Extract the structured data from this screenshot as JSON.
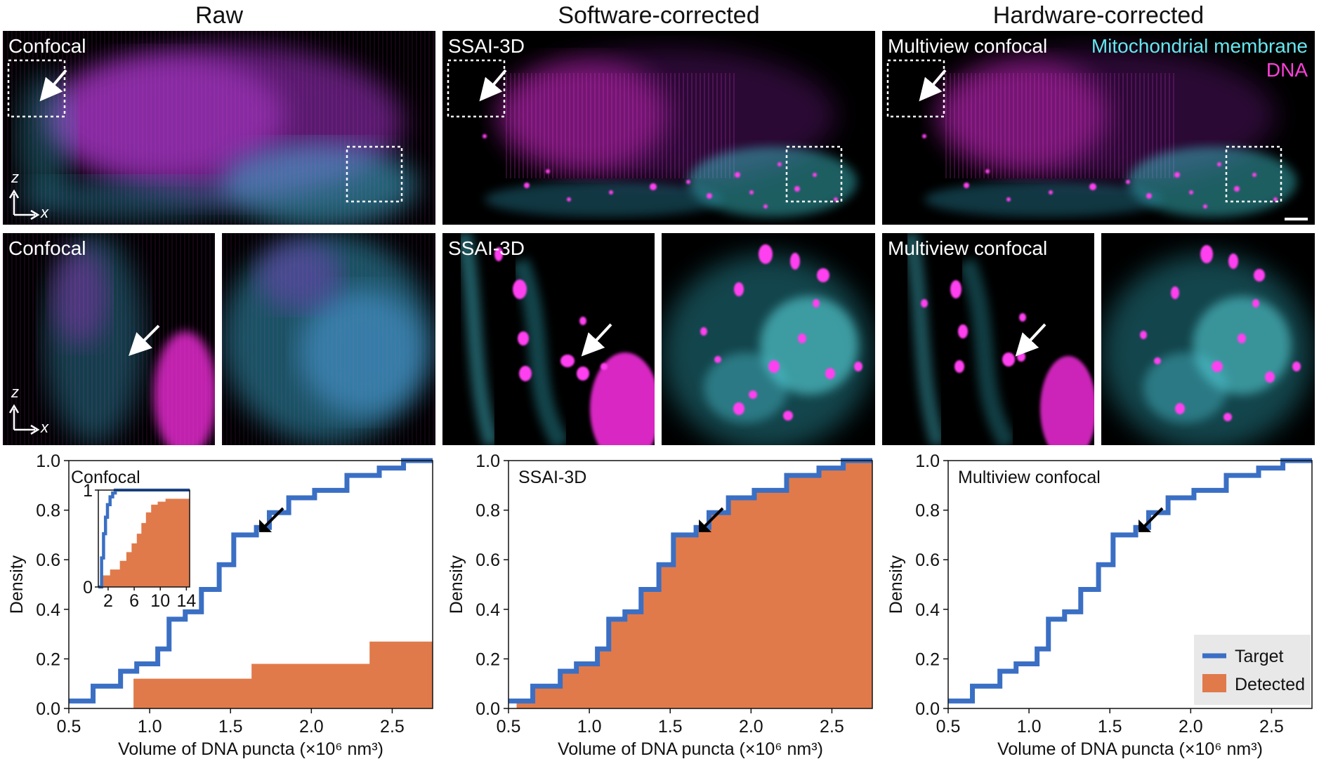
{
  "columns": [
    "Raw",
    "Software-corrected",
    "Hardware-corrected"
  ],
  "overview_labels": [
    "Confocal",
    "SSAI-3D",
    "Multiview confocal"
  ],
  "zoom_labels": [
    "Confocal",
    "SSAI-3D",
    "Multiview confocal"
  ],
  "legend_channels": {
    "membrane": "Mitochondrial membrane",
    "dna": "DNA"
  },
  "axes_indicator": {
    "z": "z",
    "x": "x"
  },
  "colors": {
    "membrane": "#5fe3e8",
    "dna": "#ff2ee6",
    "target": "#3a6fc4",
    "detected": "#e07a4b"
  },
  "chart_legend": {
    "target": "Target",
    "detected": "Detected"
  },
  "chart_data": [
    {
      "type": "step",
      "title": "Confocal",
      "xlabel": "Volume of DNA puncta (×10⁶ nm³)",
      "ylabel": "Density",
      "xlim": [
        0.5,
        2.75
      ],
      "ylim": [
        0.0,
        1.0
      ],
      "xticks": [
        0.5,
        1.0,
        1.5,
        2.0,
        2.5
      ],
      "yticks": [
        0.0,
        0.2,
        0.4,
        0.6,
        0.8,
        1.0
      ],
      "series": [
        {
          "name": "Target",
          "x": [
            0.5,
            0.65,
            0.82,
            0.92,
            1.05,
            1.12,
            1.22,
            1.32,
            1.43,
            1.52,
            1.66,
            1.74,
            1.86,
            2.02,
            2.22,
            2.42,
            2.57,
            2.75
          ],
          "y": [
            0.03,
            0.09,
            0.15,
            0.18,
            0.24,
            0.36,
            0.39,
            0.48,
            0.58,
            0.7,
            0.73,
            0.79,
            0.85,
            0.88,
            0.94,
            0.97,
            1.0,
            1.0
          ]
        },
        {
          "name": "Detected",
          "x": [
            0.9,
            1.63,
            2.36,
            2.75
          ],
          "y": [
            0.12,
            0.18,
            0.27,
            0.27
          ]
        }
      ],
      "inset": {
        "xlim": [
          0.5,
          14.5
        ],
        "ylim": [
          0,
          1
        ],
        "xticks": [
          2,
          6,
          10,
          14
        ],
        "yticks": [
          0,
          1
        ],
        "target": {
          "x": [
            0.5,
            1.0,
            1.3,
            1.6,
            1.9,
            2.3,
            2.7,
            3.1,
            14.5
          ],
          "y": [
            0.0,
            0.3,
            0.55,
            0.72,
            0.85,
            0.93,
            0.97,
            1.0,
            1.0
          ]
        },
        "detected": {
          "x": [
            0.9,
            2.3,
            3.8,
            4.8,
            5.6,
            6.4,
            7.1,
            7.8,
            8.6,
            9.6,
            10.8,
            14.5
          ],
          "y": [
            0.12,
            0.18,
            0.27,
            0.36,
            0.45,
            0.55,
            0.66,
            0.77,
            0.85,
            0.88,
            0.91,
            0.91
          ]
        }
      }
    },
    {
      "type": "step",
      "title": "SSAI-3D",
      "xlabel": "Volume of DNA puncta (×10⁶ nm³)",
      "ylabel": "Density",
      "xlim": [
        0.5,
        2.75
      ],
      "ylim": [
        0.0,
        1.0
      ],
      "xticks": [
        0.5,
        1.0,
        1.5,
        2.0,
        2.5
      ],
      "yticks": [
        0.0,
        0.2,
        0.4,
        0.6,
        0.8,
        1.0
      ],
      "series": [
        {
          "name": "Target",
          "x": [
            0.5,
            0.65,
            0.82,
            0.92,
            1.05,
            1.12,
            1.22,
            1.32,
            1.43,
            1.52,
            1.66,
            1.74,
            1.86,
            2.02,
            2.22,
            2.42,
            2.57,
            2.75
          ],
          "y": [
            0.03,
            0.09,
            0.15,
            0.18,
            0.24,
            0.36,
            0.39,
            0.48,
            0.58,
            0.7,
            0.73,
            0.79,
            0.85,
            0.88,
            0.94,
            0.97,
            1.0,
            1.0
          ]
        },
        {
          "name": "Detected",
          "x": [
            0.55,
            0.65,
            0.82,
            0.92,
            1.05,
            1.12,
            1.22,
            1.32,
            1.43,
            1.52,
            1.66,
            1.74,
            1.86,
            2.02,
            2.22,
            2.42,
            2.57,
            2.75
          ],
          "y": [
            0.03,
            0.09,
            0.15,
            0.18,
            0.24,
            0.36,
            0.39,
            0.48,
            0.58,
            0.7,
            0.73,
            0.79,
            0.85,
            0.88,
            0.94,
            0.97,
            1.0,
            1.0
          ]
        }
      ]
    },
    {
      "type": "step",
      "title": "Multiview confocal",
      "xlabel": "Volume of DNA puncta (×10⁶ nm³)",
      "ylabel": "Density",
      "xlim": [
        0.5,
        2.75
      ],
      "ylim": [
        0.0,
        1.0
      ],
      "xticks": [
        0.5,
        1.0,
        1.5,
        2.0,
        2.5
      ],
      "yticks": [
        0.0,
        0.2,
        0.4,
        0.6,
        0.8,
        1.0
      ],
      "series": [
        {
          "name": "Target",
          "x": [
            0.5,
            0.65,
            0.82,
            0.92,
            1.05,
            1.12,
            1.22,
            1.32,
            1.43,
            1.52,
            1.66,
            1.74,
            1.86,
            2.02,
            2.22,
            2.42,
            2.57,
            2.75
          ],
          "y": [
            0.03,
            0.09,
            0.15,
            0.18,
            0.24,
            0.36,
            0.39,
            0.48,
            0.58,
            0.7,
            0.73,
            0.79,
            0.85,
            0.88,
            0.94,
            0.97,
            1.0,
            1.0
          ]
        },
        {
          "name": "Detected",
          "x": [],
          "y": []
        }
      ]
    }
  ]
}
